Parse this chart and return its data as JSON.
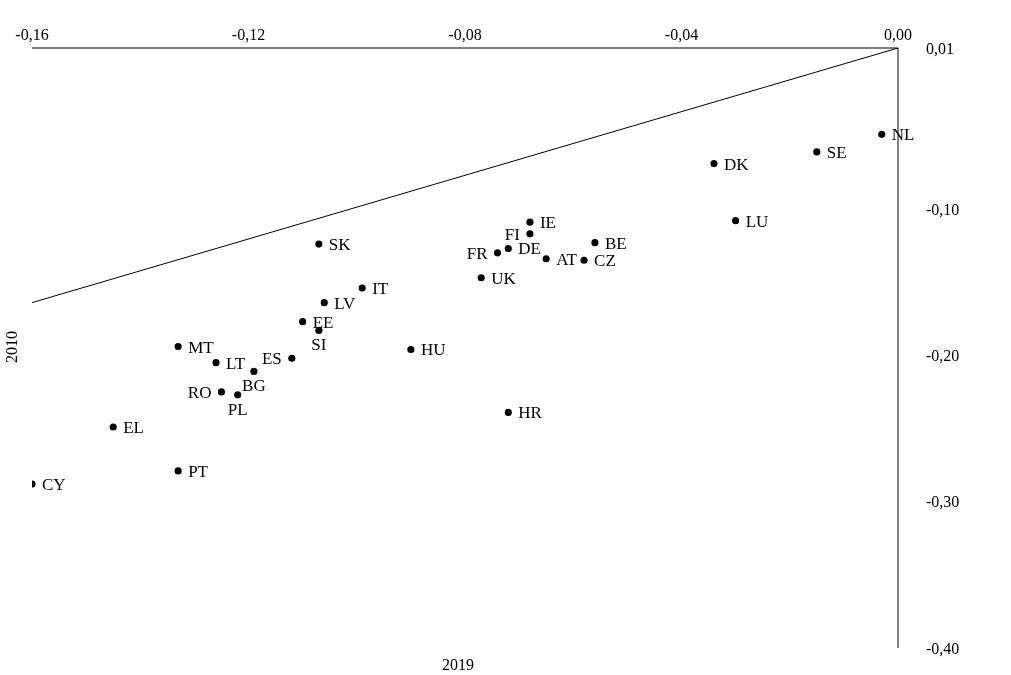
{
  "chart_data": {
    "type": "scatter",
    "xlabel": "2019",
    "ylabel": "2010",
    "xlim": [
      -0.16,
      0
    ],
    "ylim": [
      -0.4,
      0.01
    ],
    "xticks": [
      {
        "value": -0.16,
        "label": "-0,16"
      },
      {
        "value": -0.12,
        "label": "-0,12"
      },
      {
        "value": -0.08,
        "label": "-0,08"
      },
      {
        "value": -0.04,
        "label": "-0,04"
      },
      {
        "value": 0,
        "label": "0,00"
      }
    ],
    "yticks": [
      {
        "value": 0.01,
        "label": "0,01"
      },
      {
        "value": -0.1,
        "label": "-0,10"
      },
      {
        "value": -0.2,
        "label": "-0,20"
      },
      {
        "value": -0.3,
        "label": "-0,30"
      },
      {
        "value": -0.4,
        "label": "-0,40"
      }
    ],
    "grid": false,
    "series": [
      {
        "marker": "circle",
        "color": "#000000",
        "x": [
          -0.107,
          -0.099,
          -0.106,
          -0.11,
          -0.107,
          -0.133,
          -0.09,
          -0.112,
          -0.126,
          -0.119,
          -0.125,
          -0.122,
          -0.145,
          -0.133,
          -0.16,
          -0.003,
          -0.015,
          -0.034,
          -0.03,
          -0.068,
          -0.068,
          -0.056,
          -0.072,
          -0.074,
          -0.065,
          -0.058,
          -0.077,
          -0.072
        ],
        "values": [
          -0.124,
          -0.154,
          -0.164,
          -0.177,
          -0.183,
          -0.194,
          -0.196,
          -0.202,
          -0.205,
          -0.211,
          -0.225,
          -0.227,
          -0.249,
          -0.279,
          -0.288,
          -0.049,
          -0.061,
          -0.069,
          -0.108,
          -0.109,
          -0.117,
          -0.123,
          -0.127,
          -0.13,
          -0.134,
          -0.135,
          -0.147,
          -0.239
        ]
      },
      {
        "type": "line",
        "color": "#000000",
        "x": [
          -0.16,
          0
        ],
        "values": [
          -0.164,
          0.01
        ]
      }
    ],
    "annotations": [
      {
        "text": "SK",
        "x": -0.107,
        "y": -0.124
      },
      {
        "text": "IT",
        "x": -0.099,
        "y": -0.154
      },
      {
        "text": "LV",
        "x": -0.106,
        "y": -0.164
      },
      {
        "text": "EE",
        "x": -0.11,
        "y": -0.177
      },
      {
        "text": "SI",
        "x": -0.107,
        "y": -0.183
      },
      {
        "text": "MT",
        "x": -0.133,
        "y": -0.194
      },
      {
        "text": "HU",
        "x": -0.09,
        "y": -0.196
      },
      {
        "text": "ES",
        "x": -0.112,
        "y": -0.202
      },
      {
        "text": "LT",
        "x": -0.126,
        "y": -0.205
      },
      {
        "text": "BG",
        "x": -0.119,
        "y": -0.211
      },
      {
        "text": "RO",
        "x": -0.125,
        "y": -0.225
      },
      {
        "text": "PL",
        "x": -0.122,
        "y": -0.227
      },
      {
        "text": "EL",
        "x": -0.145,
        "y": -0.249
      },
      {
        "text": "PT",
        "x": -0.133,
        "y": -0.279
      },
      {
        "text": "CY",
        "x": -0.16,
        "y": -0.288
      },
      {
        "text": "NL",
        "x": -0.003,
        "y": -0.049
      },
      {
        "text": "SE",
        "x": -0.015,
        "y": -0.061
      },
      {
        "text": "DK",
        "x": -0.034,
        "y": -0.069
      },
      {
        "text": "LU",
        "x": -0.03,
        "y": -0.108
      },
      {
        "text": "IE",
        "x": -0.068,
        "y": -0.109
      },
      {
        "text": "FI",
        "x": -0.068,
        "y": -0.117
      },
      {
        "text": "BE",
        "x": -0.056,
        "y": -0.123
      },
      {
        "text": "DE",
        "x": -0.072,
        "y": -0.127
      },
      {
        "text": "FR",
        "x": -0.074,
        "y": -0.13
      },
      {
        "text": "AT",
        "x": -0.065,
        "y": -0.134
      },
      {
        "text": "CZ",
        "x": -0.058,
        "y": -0.135
      },
      {
        "text": "UK",
        "x": -0.077,
        "y": -0.147
      },
      {
        "text": "HR",
        "x": -0.072,
        "y": -0.239
      }
    ]
  }
}
